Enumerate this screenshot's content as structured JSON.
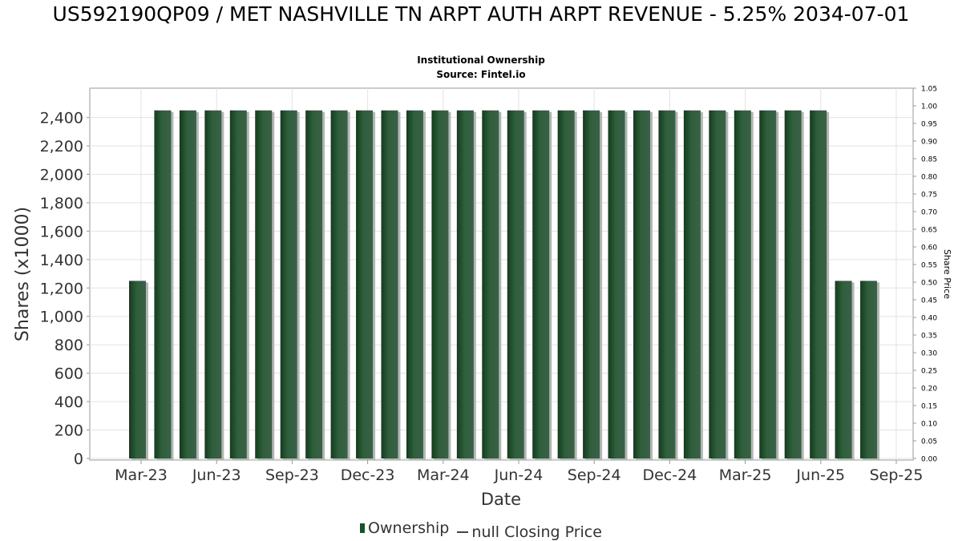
{
  "chart_data": {
    "type": "bar",
    "title": "US592190QP09 / MET NASHVILLE TN ARPT AUTH ARPT REVENUE - 5.25% 2034-07-01",
    "subtitle_lines": [
      "Institutional Ownership",
      "Source: Fintel.io"
    ],
    "xlabel": "Date",
    "ylabel": "Shares (x1000)",
    "y2label": "Share Price",
    "ylim": [
      0,
      2550
    ],
    "y2lim": [
      0,
      1.05
    ],
    "yticks": [
      0,
      200,
      400,
      600,
      800,
      1000,
      1200,
      1400,
      1600,
      1800,
      2000,
      2200,
      2400
    ],
    "ytick_labels": [
      "0",
      "200",
      "400",
      "600",
      "800",
      "1,000",
      "1,200",
      "1,400",
      "1,600",
      "1,800",
      "2,000",
      "2,200",
      "2,400"
    ],
    "y2ticks": [
      "0.00",
      "0.05",
      "0.10",
      "0.15",
      "0.20",
      "0.25",
      "0.30",
      "0.35",
      "0.40",
      "0.45",
      "0.50",
      "0.55",
      "0.60",
      "0.65",
      "0.70",
      "0.75",
      "0.80",
      "0.85",
      "0.90",
      "0.95",
      "1.00",
      "1.05"
    ],
    "xticks": [
      "Mar-23",
      "Jun-23",
      "Sep-23",
      "Dec-23",
      "Mar-24",
      "Jun-24",
      "Sep-24",
      "Dec-24",
      "Mar-25",
      "Jun-25",
      "Sep-25"
    ],
    "grid": true,
    "legend_position": "bottom",
    "series": [
      {
        "name": "Ownership",
        "color": "#1f4f2a",
        "values": [
          1250,
          2450,
          2450,
          2450,
          2450,
          2450,
          2450,
          2450,
          2450,
          2450,
          2450,
          2450,
          2450,
          2450,
          2450,
          2450,
          2450,
          2450,
          2450,
          2450,
          2450,
          2450,
          2450,
          2450,
          2450,
          2450,
          2450,
          2450,
          1250,
          1250
        ]
      },
      {
        "name": "null Closing Price",
        "color": "#444444",
        "values": []
      }
    ]
  },
  "legend": {
    "ownership_label": "Ownership",
    "price_label": "null Closing Price"
  }
}
